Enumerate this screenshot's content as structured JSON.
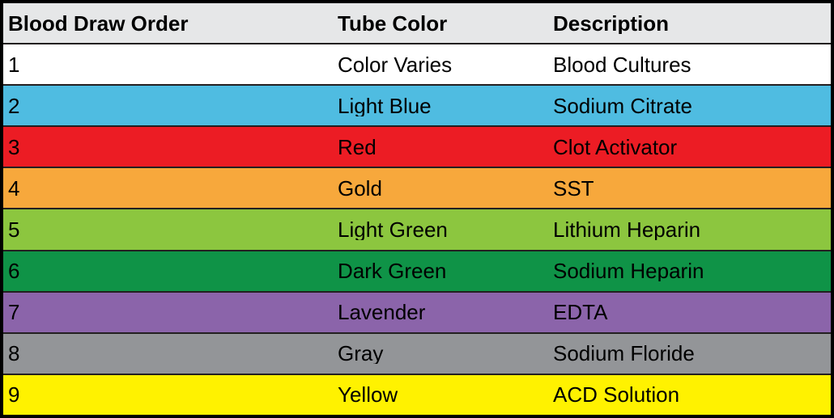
{
  "chart_data": {
    "type": "table",
    "columns": [
      "Blood Draw Order",
      "Tube Color",
      "Description"
    ],
    "rows": [
      {
        "order": "1",
        "tube_color": "Color Varies",
        "description": "Blood Cultures",
        "bg": "#ffffff"
      },
      {
        "order": "2",
        "tube_color": "Light Blue",
        "description": "Sodium Citrate",
        "bg": "#4fbce1"
      },
      {
        "order": "3",
        "tube_color": "Red",
        "description": "Clot Activator",
        "bg": "#ec1c24"
      },
      {
        "order": "4",
        "tube_color": "Gold",
        "description": "SST",
        "bg": "#f7a83c"
      },
      {
        "order": "5",
        "tube_color": "Light Green",
        "description": "Lithium Heparin",
        "bg": "#8cc63f"
      },
      {
        "order": "6",
        "tube_color": "Dark Green",
        "description": "Sodium Heparin",
        "bg": "#0f9347"
      },
      {
        "order": "7",
        "tube_color": "Lavender",
        "description": "EDTA",
        "bg": "#8b64aa"
      },
      {
        "order": "8",
        "tube_color": "Gray",
        "description": "Sodium Floride",
        "bg": "#939598"
      },
      {
        "order": "9",
        "tube_color": "Yellow",
        "description": "ACD Solution",
        "bg": "#fff200"
      }
    ],
    "header_bg": "#e6e7e8",
    "border_color": "#000000",
    "separator_color": "#231f20",
    "text_color": "#000000"
  }
}
